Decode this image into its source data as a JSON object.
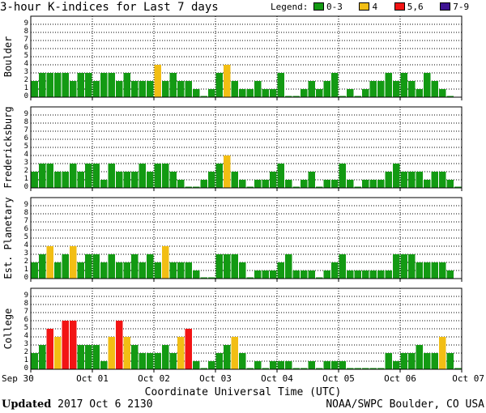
{
  "chart_data": {
    "type": "bar",
    "title": "3-hour K-indices for Last 7 days",
    "legend": {
      "label": "Legend:",
      "entries": [
        {
          "label": "0-3",
          "color": "#139A13"
        },
        {
          "label": "4",
          "color": "#F2BE14"
        },
        {
          "label": "5,6",
          "color": "#F21414"
        },
        {
          "label": "7-9",
          "color": "#3E1493"
        }
      ]
    },
    "xlabel": "Coordinate Universal Time (UTC)",
    "x_ticks": [
      "Sep 30",
      "Oct 01",
      "Oct 02",
      "Oct 03",
      "Oct 04",
      "Oct 05",
      "Oct 06",
      "Oct 07"
    ],
    "ylim": [
      0,
      9
    ],
    "y_ticks": [
      "0",
      "1",
      "2",
      "3",
      "4",
      "5",
      "6",
      "7",
      "8",
      "9"
    ],
    "grid": true,
    "panels": [
      {
        "name": "Boulder",
        "values": [
          2,
          3,
          3,
          3,
          3,
          2,
          3,
          3,
          2,
          3,
          3,
          2,
          3,
          2,
          2,
          2,
          4,
          2,
          3,
          2,
          2,
          1,
          0,
          1,
          3,
          4,
          2,
          1,
          1,
          2,
          1,
          1,
          3,
          0,
          0,
          1,
          2,
          1,
          2,
          3,
          0,
          1,
          0,
          1,
          2,
          2,
          3,
          2,
          3,
          2,
          1,
          3,
          2,
          1,
          0,
          null
        ]
      },
      {
        "name": "Fredericksburg",
        "values": [
          2,
          3,
          3,
          2,
          2,
          3,
          2,
          3,
          3,
          1,
          3,
          2,
          2,
          2,
          3,
          2,
          3,
          3,
          2,
          1,
          0,
          0,
          1,
          2,
          3,
          4,
          2,
          1,
          0,
          1,
          1,
          2,
          3,
          1,
          0,
          1,
          2,
          0,
          1,
          1,
          3,
          1,
          0,
          1,
          1,
          1,
          2,
          3,
          2,
          2,
          2,
          1,
          2,
          2,
          1,
          0
        ]
      },
      {
        "name": "Est. Planetary",
        "values": [
          2,
          3,
          4,
          2,
          3,
          4,
          2,
          3,
          3,
          2,
          3,
          2,
          2,
          3,
          2,
          3,
          2,
          4,
          2,
          2,
          2,
          1,
          0,
          0,
          3,
          3,
          3,
          2,
          0,
          1,
          1,
          1,
          2,
          3,
          1,
          1,
          1,
          0,
          1,
          2,
          3,
          1,
          1,
          1,
          1,
          1,
          1,
          3,
          3,
          3,
          2,
          2,
          2,
          2,
          1,
          null
        ]
      },
      {
        "name": "College",
        "values": [
          2,
          3,
          5,
          4,
          6,
          6,
          3,
          3,
          3,
          1,
          4,
          6,
          4,
          3,
          2,
          2,
          2,
          3,
          2,
          4,
          5,
          1,
          0,
          1,
          2,
          3,
          4,
          2,
          0,
          1,
          0,
          1,
          1,
          1,
          0,
          0,
          1,
          0,
          1,
          1,
          1,
          0,
          0,
          0,
          0,
          0,
          2,
          1,
          2,
          2,
          3,
          2,
          2,
          4,
          2,
          0
        ]
      }
    ]
  },
  "footer": {
    "updated_label": "Updated",
    "updated_value": "2017 Oct  6 2130",
    "credit": "NOAA/SWPC Boulder, CO USA"
  }
}
